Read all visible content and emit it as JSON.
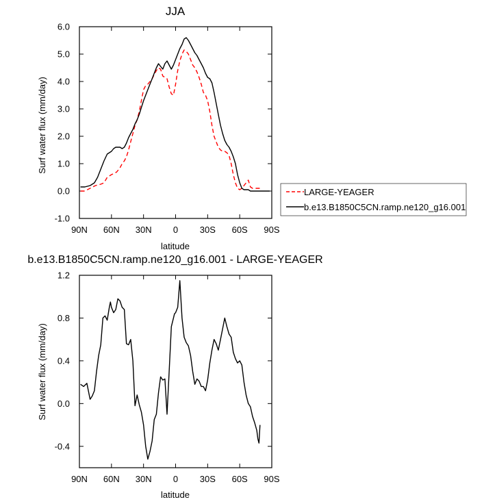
{
  "chart_data": [
    {
      "type": "line",
      "title": "JJA",
      "xlabel": "latitude",
      "ylabel": "Surf water flux (mm/day)",
      "xlim": [
        90,
        -90
      ],
      "ylim": [
        -1.0,
        6.0
      ],
      "x_ticks": [
        90,
        60,
        30,
        0,
        -30,
        -60,
        -90
      ],
      "x_tick_labels": [
        "90N",
        "60N",
        "30N",
        "0",
        "30S",
        "60S",
        "90S"
      ],
      "y_ticks": [
        -1.0,
        0.0,
        1.0,
        2.0,
        3.0,
        4.0,
        5.0,
        6.0
      ],
      "y_tick_labels": [
        "-1.0",
        "0.0",
        "1.0",
        "2.0",
        "3.0",
        "4.0",
        "5.0",
        "6.0"
      ],
      "grid": false,
      "legend_position": "right",
      "series": [
        {
          "name": "LARGE-YEAGER",
          "color": "#ff0000",
          "dash": "dashed",
          "x": [
            89,
            85,
            80,
            75,
            70,
            67,
            64,
            62,
            60,
            57,
            55,
            52,
            50,
            48,
            46,
            44,
            42,
            40,
            38,
            36,
            34,
            32,
            30,
            28,
            26,
            24,
            22,
            20,
            18,
            16,
            14,
            12,
            10,
            8,
            6,
            4,
            2,
            0,
            -2,
            -4,
            -6,
            -8,
            -10,
            -12,
            -14,
            -16,
            -18,
            -20,
            -22,
            -24,
            -26,
            -28,
            -30,
            -32,
            -34,
            -36,
            -38,
            -40,
            -42,
            -44,
            -46,
            -48,
            -50,
            -52,
            -54,
            -56,
            -58,
            -60,
            -62,
            -64,
            -66,
            -68,
            -70,
            -72,
            -74,
            -76,
            -78,
            -79
          ],
          "y": [
            0.0,
            0.0,
            0.1,
            0.2,
            0.25,
            0.3,
            0.5,
            0.55,
            0.6,
            0.65,
            0.7,
            0.85,
            1.0,
            1.1,
            1.25,
            1.5,
            1.8,
            2.1,
            2.4,
            2.6,
            2.9,
            3.3,
            3.7,
            3.85,
            3.9,
            4.0,
            4.1,
            4.25,
            4.4,
            4.5,
            4.45,
            4.2,
            4.15,
            4.1,
            3.8,
            3.55,
            3.5,
            3.9,
            4.4,
            4.75,
            5.0,
            5.15,
            5.1,
            5.0,
            4.8,
            4.6,
            4.5,
            4.35,
            4.15,
            3.9,
            3.6,
            3.5,
            3.3,
            2.9,
            2.4,
            2.0,
            1.8,
            1.6,
            1.5,
            1.45,
            1.45,
            1.4,
            1.3,
            1.0,
            0.6,
            0.3,
            0.1,
            0.05,
            0.1,
            0.2,
            0.3,
            0.4,
            0.15,
            0.1,
            0.1,
            0.1,
            0.1,
            0.1
          ]
        },
        {
          "name": "b.e13.B1850C5CN.ramp.ne120_g16.001",
          "color": "#000000",
          "dash": "solid",
          "x": [
            89,
            85,
            80,
            76,
            73,
            70,
            67,
            64,
            62,
            60,
            58,
            56,
            54,
            52,
            50,
            48,
            46,
            44,
            42,
            40,
            38,
            36,
            34,
            32,
            30,
            28,
            26,
            24,
            22,
            20,
            18,
            16,
            14,
            12,
            10,
            8,
            6,
            4,
            2,
            0,
            -2,
            -4,
            -6,
            -8,
            -10,
            -12,
            -14,
            -16,
            -18,
            -20,
            -22,
            -24,
            -26,
            -28,
            -30,
            -32,
            -34,
            -36,
            -38,
            -40,
            -42,
            -44,
            -46,
            -48,
            -50,
            -52,
            -54,
            -56,
            -58,
            -60,
            -62,
            -64,
            -66,
            -68,
            -70,
            -72,
            -74,
            -76,
            -78,
            -80,
            -82,
            -84,
            -86,
            -88
          ],
          "y": [
            0.15,
            0.15,
            0.2,
            0.3,
            0.5,
            0.8,
            1.1,
            1.35,
            1.4,
            1.45,
            1.55,
            1.6,
            1.6,
            1.6,
            1.55,
            1.6,
            1.75,
            1.95,
            2.1,
            2.25,
            2.45,
            2.6,
            2.8,
            3.05,
            3.3,
            3.5,
            3.7,
            3.9,
            4.1,
            4.3,
            4.5,
            4.65,
            4.55,
            4.45,
            4.65,
            4.75,
            4.6,
            4.45,
            4.6,
            4.8,
            5.0,
            5.2,
            5.35,
            5.55,
            5.6,
            5.5,
            5.35,
            5.2,
            5.05,
            4.95,
            4.8,
            4.65,
            4.5,
            4.3,
            4.15,
            4.1,
            3.95,
            3.6,
            3.2,
            2.8,
            2.4,
            2.1,
            1.85,
            1.7,
            1.6,
            1.45,
            1.25,
            1.0,
            0.6,
            0.3,
            0.1,
            0.05,
            0.05,
            0.05,
            0.0,
            0.0,
            0.0,
            0.0,
            0.0,
            0.0,
            0.0,
            0.0,
            0.0,
            0.0
          ]
        }
      ]
    },
    {
      "type": "line",
      "title": "b.e13.B1850C5CN.ramp.ne120_g16.001 - LARGE-YEAGER",
      "xlabel": "latitude",
      "ylabel": "Surf water flux (mm/day)",
      "xlim": [
        90,
        -90
      ],
      "ylim": [
        -0.6,
        1.2
      ],
      "x_ticks": [
        90,
        60,
        30,
        0,
        -30,
        -60,
        -90
      ],
      "x_tick_labels": [
        "90N",
        "60N",
        "30N",
        "0",
        "30S",
        "60S",
        "90S"
      ],
      "y_ticks": [
        -0.4,
        0.0,
        0.4,
        0.8,
        1.2
      ],
      "y_tick_labels": [
        "-0.4",
        "0.0",
        "0.4",
        "0.8",
        "1.2"
      ],
      "grid": false,
      "series": [
        {
          "color": "#000000",
          "dash": "solid",
          "x": [
            89,
            86,
            83,
            80,
            78,
            76,
            74,
            72,
            70,
            68,
            66,
            64,
            62,
            61,
            60,
            58,
            56,
            54,
            52,
            50,
            48,
            46,
            44,
            42,
            40,
            38,
            36,
            34,
            32,
            30,
            28,
            26,
            24,
            22,
            20,
            18,
            16,
            14,
            12,
            10,
            8,
            6,
            4,
            2,
            1,
            0,
            -2,
            -4,
            -6,
            -8,
            -10,
            -12,
            -14,
            -16,
            -18,
            -20,
            -22,
            -24,
            -26,
            -28,
            -30,
            -32,
            -34,
            -36,
            -38,
            -40,
            -42,
            -44,
            -46,
            -48,
            -50,
            -52,
            -54,
            -56,
            -58,
            -60,
            -62,
            -64,
            -66,
            -68,
            -70,
            -72,
            -74,
            -76,
            -77,
            -78,
            -79
          ],
          "y": [
            0.18,
            0.16,
            0.19,
            0.04,
            0.07,
            0.12,
            0.3,
            0.45,
            0.55,
            0.8,
            0.82,
            0.78,
            0.9,
            0.95,
            0.9,
            0.85,
            0.88,
            0.98,
            0.96,
            0.9,
            0.88,
            0.56,
            0.55,
            0.6,
            0.4,
            -0.02,
            0.08,
            -0.01,
            -0.08,
            -0.2,
            -0.4,
            -0.52,
            -0.45,
            -0.35,
            -0.15,
            -0.1,
            0.1,
            0.25,
            0.22,
            0.23,
            -0.1,
            0.3,
            0.72,
            0.8,
            0.84,
            0.85,
            0.9,
            1.15,
            0.8,
            0.62,
            0.57,
            0.54,
            0.45,
            0.3,
            0.18,
            0.23,
            0.21,
            0.16,
            0.16,
            0.12,
            0.22,
            0.38,
            0.5,
            0.6,
            0.56,
            0.5,
            0.6,
            0.7,
            0.8,
            0.72,
            0.65,
            0.62,
            0.48,
            0.42,
            0.38,
            0.4,
            0.36,
            0.2,
            0.08,
            0.0,
            -0.03,
            -0.12,
            -0.18,
            -0.25,
            -0.33,
            -0.37,
            -0.2
          ]
        }
      ]
    }
  ]
}
